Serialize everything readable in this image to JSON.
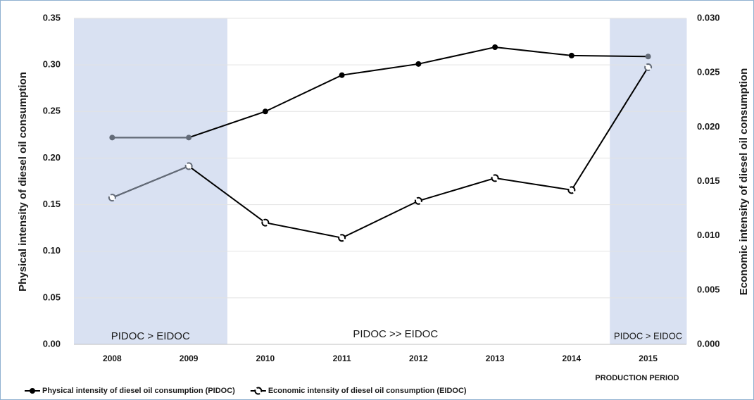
{
  "chart_data": {
    "type": "line",
    "x_label": "PRODUCTION PERIOD",
    "y_label": "Physical intensity of diesel oil consumption",
    "y2_label": "Economic intensity of diesel oil consumption",
    "categories": [
      "2008",
      "2009",
      "2010",
      "2011",
      "2012",
      "2013",
      "2014",
      "2015"
    ],
    "series": [
      {
        "name": "Physical intensity of diesel oil consumption (PIDOC)",
        "color": "#000000",
        "marker": "filled-circle",
        "values": [
          0.222,
          0.222,
          0.25,
          0.289,
          0.301,
          0.319,
          0.31,
          0.309
        ]
      },
      {
        "name": "Economic intensity of diesel oil consumption (EIDOC)",
        "color": "#000000",
        "marker": "open-circle",
        "axis": "y2",
        "values": [
          0.0135,
          0.0164,
          0.0112,
          0.0098,
          0.0132,
          0.0153,
          0.0142,
          0.0255
        ]
      }
    ],
    "ylim": [
      0,
      0.35
    ],
    "yticks": [
      {
        "value": 0,
        "label": "0.00"
      },
      0.05,
      {
        "value": 0.1,
        "label": "0.10"
      },
      0.15,
      {
        "value": 0.2,
        "label": "0.20"
      },
      0.25,
      {
        "value": 0.3,
        "label": "0.30"
      },
      0.35
    ],
    "y2lim": [
      0,
      0.03
    ],
    "y2ticks": [
      {
        "value": 0,
        "label": "0.000"
      },
      0.005,
      {
        "value": 0.01,
        "label": "0.010"
      },
      0.015,
      {
        "value": 0.02,
        "label": "0.020"
      },
      0.025,
      {
        "value": 0.03,
        "label": "0.030"
      }
    ],
    "grid": true,
    "shaded_categories": [
      0,
      1,
      7
    ],
    "shade_color": "#d9e1f2",
    "shaded_mark_color": "#636b78",
    "annotations": [
      "PIDOC > EIDOC",
      "PIDOC >> EIDOC",
      "PIDOC > EIDOC"
    ],
    "legend": "bottom"
  }
}
